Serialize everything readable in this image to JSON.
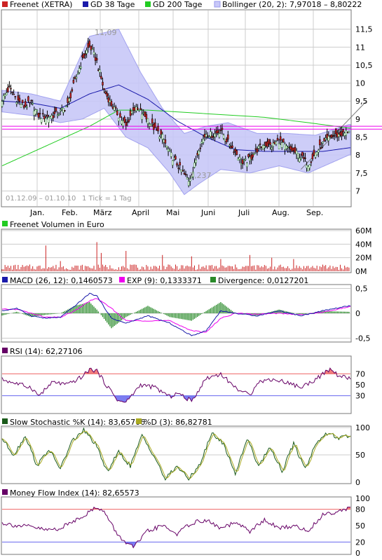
{
  "colors": {
    "candle_up": "#ffffff",
    "candle_down": "#cc2222",
    "candle_body_up": "#1a7a1a",
    "gd38": "#1a1aaa",
    "gd200": "#22cc22",
    "bollinger_fill": "#c8c8f8",
    "bollinger_line": "#9999ee",
    "magenta": "#ee00ee",
    "volume": "#cc2222",
    "macd": "#1a1aaa",
    "exp": "#ee00ee",
    "divergence": "#2a8a2a",
    "rsi": "#660066",
    "overbought": "#ee6666",
    "oversold": "#6666ee",
    "stoch_k": "#1a5a1a",
    "stoch_d": "#aaaa22",
    "mfi": "#660066",
    "grid": "#cccccc"
  },
  "chart_data": [
    {
      "type": "candlestick",
      "title": "Freenet (XETRA)",
      "legend": [
        {
          "name": "Freenet (XETRA)",
          "icon": "series-icon-freenet"
        },
        {
          "name": "GD 38 Tage",
          "icon": "series-icon-gd38"
        },
        {
          "name": "GD 200 Tage",
          "icon": "series-icon-gd200"
        },
        {
          "name": "Bollinger (20, 2): 7,97018 – 8,80222",
          "icon": "series-icon-bollinger"
        }
      ],
      "months": [
        "Jan.",
        "Feb.",
        "März",
        "April",
        "Mai",
        "Juni",
        "Juli",
        "Aug.",
        "Sep."
      ],
      "y_ticks": [
        "11,5",
        "11",
        "10,5",
        "10",
        "9,5",
        "9",
        "8,5",
        "8",
        "7,5",
        "7"
      ],
      "ylim": [
        6.6,
        12.0
      ],
      "annotations": {
        "high_label": "11,09",
        "low_label": "7,237",
        "range_label": "01.12.09 – 01.10.10",
        "tick_label": "1 Tick = 1 Tag"
      },
      "close_anchors": [
        [
          0,
          9.55
        ],
        [
          5,
          9.85
        ],
        [
          10,
          9.55
        ],
        [
          15,
          9.35
        ],
        [
          20,
          9.45
        ],
        [
          25,
          9.1
        ],
        [
          30,
          9.05
        ],
        [
          35,
          9.1
        ],
        [
          40,
          9.2
        ],
        [
          45,
          9.4
        ],
        [
          50,
          10.05
        ],
        [
          55,
          10.65
        ],
        [
          60,
          11.05
        ],
        [
          65,
          10.6
        ],
        [
          70,
          9.8
        ],
        [
          75,
          9.4
        ],
        [
          80,
          9.1
        ],
        [
          85,
          8.8
        ],
        [
          90,
          9.3
        ],
        [
          95,
          9.2
        ],
        [
          100,
          9.0
        ],
        [
          105,
          8.7
        ],
        [
          110,
          8.5
        ],
        [
          115,
          8.05
        ],
        [
          120,
          7.75
        ],
        [
          125,
          7.45
        ],
        [
          128,
          7.3
        ],
        [
          131,
          7.55
        ],
        [
          135,
          8.2
        ],
        [
          140,
          8.6
        ],
        [
          145,
          8.55
        ],
        [
          150,
          8.7
        ],
        [
          155,
          8.35
        ],
        [
          160,
          8.1
        ],
        [
          165,
          7.75
        ],
        [
          170,
          7.9
        ],
        [
          175,
          8.15
        ],
        [
          180,
          8.3
        ],
        [
          185,
          8.25
        ],
        [
          190,
          8.4
        ],
        [
          195,
          8.2
        ],
        [
          200,
          8.1
        ],
        [
          205,
          7.95
        ],
        [
          210,
          7.75
        ],
        [
          215,
          8.05
        ],
        [
          220,
          8.3
        ],
        [
          225,
          8.5
        ],
        [
          230,
          8.55
        ],
        [
          235,
          8.6
        ],
        [
          238,
          8.7
        ]
      ],
      "gd38_anchors": [
        [
          0,
          9.5
        ],
        [
          20,
          9.45
        ],
        [
          40,
          9.3
        ],
        [
          60,
          9.7
        ],
        [
          80,
          9.95
        ],
        [
          100,
          9.55
        ],
        [
          120,
          8.95
        ],
        [
          140,
          8.5
        ],
        [
          160,
          8.15
        ],
        [
          180,
          8.1
        ],
        [
          200,
          8.1
        ],
        [
          220,
          8.1
        ],
        [
          238,
          8.2
        ]
      ],
      "gd200_anchors": [
        [
          0,
          7.7
        ],
        [
          30,
          8.25
        ],
        [
          60,
          8.8
        ],
        [
          80,
          9.25
        ],
        [
          100,
          9.25
        ],
        [
          140,
          9.15
        ],
        [
          180,
          9.05
        ],
        [
          210,
          8.9
        ],
        [
          238,
          8.75
        ]
      ],
      "bollinger_upper": [
        [
          0,
          9.8
        ],
        [
          20,
          9.7
        ],
        [
          40,
          9.5
        ],
        [
          60,
          11.3
        ],
        [
          80,
          11.5
        ],
        [
          95,
          10.3
        ],
        [
          110,
          9.3
        ],
        [
          125,
          8.6
        ],
        [
          140,
          8.8
        ],
        [
          155,
          8.9
        ],
        [
          175,
          8.6
        ],
        [
          195,
          8.6
        ],
        [
          215,
          8.55
        ],
        [
          238,
          8.85
        ]
      ],
      "bollinger_lower": [
        [
          0,
          9.2
        ],
        [
          20,
          9.1
        ],
        [
          40,
          8.9
        ],
        [
          55,
          9.0
        ],
        [
          70,
          9.3
        ],
        [
          85,
          8.5
        ],
        [
          100,
          8.2
        ],
        [
          115,
          7.5
        ],
        [
          125,
          6.9
        ],
        [
          135,
          7.2
        ],
        [
          150,
          7.6
        ],
        [
          170,
          7.5
        ],
        [
          190,
          7.7
        ],
        [
          210,
          7.5
        ],
        [
          238,
          8.0
        ]
      ],
      "magenta_levels": [
        8.8,
        8.72
      ],
      "trendline": [
        [
          205,
          7.6
        ],
        [
          250,
          9.5
        ]
      ]
    },
    {
      "type": "bar",
      "title": "Freenet Volumen in Euro",
      "y_ticks": [
        "60M",
        "40M",
        "20M",
        "0M"
      ],
      "ylim": [
        0,
        60
      ],
      "spikes": [
        [
          30,
          38
        ],
        [
          40,
          15
        ],
        [
          65,
          43
        ],
        [
          68,
          27
        ],
        [
          85,
          30
        ],
        [
          110,
          24
        ],
        [
          130,
          22
        ],
        [
          150,
          18
        ],
        [
          170,
          24
        ],
        [
          185,
          20
        ],
        [
          200,
          18
        ]
      ]
    },
    {
      "type": "line",
      "legend": [
        {
          "name": "MACD (26, 12): 0,1460573",
          "icon": "series-icon-macd"
        },
        {
          "name": "EXP (9): 0,1333371",
          "icon": "series-icon-exp"
        },
        {
          "name": "Divergence: 0,0127201",
          "icon": "series-icon-divergence"
        }
      ],
      "y_ticks": [
        "0,5",
        "0",
        "-0,5"
      ],
      "ylim": [
        -0.55,
        0.55
      ],
      "macd": [
        [
          0,
          0.05
        ],
        [
          10,
          0.1
        ],
        [
          20,
          -0.05
        ],
        [
          30,
          -0.1
        ],
        [
          40,
          -0.08
        ],
        [
          50,
          0.15
        ],
        [
          60,
          0.4
        ],
        [
          65,
          0.35
        ],
        [
          75,
          -0.1
        ],
        [
          85,
          -0.2
        ],
        [
          100,
          -0.05
        ],
        [
          115,
          -0.2
        ],
        [
          130,
          -0.45
        ],
        [
          140,
          -0.35
        ],
        [
          150,
          0.05
        ],
        [
          160,
          0.0
        ],
        [
          175,
          -0.05
        ],
        [
          190,
          0.05
        ],
        [
          205,
          -0.05
        ],
        [
          220,
          0.05
        ],
        [
          238,
          0.15
        ]
      ],
      "exp": [
        [
          0,
          0.08
        ],
        [
          10,
          0.08
        ],
        [
          20,
          0.0
        ],
        [
          30,
          -0.08
        ],
        [
          40,
          -0.08
        ],
        [
          50,
          0.05
        ],
        [
          60,
          0.25
        ],
        [
          65,
          0.3
        ],
        [
          75,
          0.1
        ],
        [
          85,
          -0.15
        ],
        [
          100,
          -0.15
        ],
        [
          115,
          -0.15
        ],
        [
          130,
          -0.35
        ],
        [
          140,
          -0.38
        ],
        [
          150,
          -0.1
        ],
        [
          160,
          0.0
        ],
        [
          175,
          -0.02
        ],
        [
          190,
          0.0
        ],
        [
          205,
          -0.03
        ],
        [
          220,
          0.02
        ],
        [
          238,
          0.13
        ]
      ]
    },
    {
      "type": "line",
      "legend": [
        {
          "name": "RSI (14): 62,27106",
          "icon": "series-icon-rsi"
        }
      ],
      "y_ticks": [
        "70",
        "50",
        "30"
      ],
      "ylim": [
        0,
        100
      ],
      "levels": [
        70,
        30
      ],
      "values": [
        [
          0,
          60
        ],
        [
          10,
          52
        ],
        [
          20,
          45
        ],
        [
          25,
          30
        ],
        [
          35,
          55
        ],
        [
          45,
          50
        ],
        [
          55,
          65
        ],
        [
          60,
          78
        ],
        [
          65,
          76
        ],
        [
          70,
          55
        ],
        [
          80,
          20
        ],
        [
          85,
          18
        ],
        [
          95,
          50
        ],
        [
          105,
          45
        ],
        [
          115,
          28
        ],
        [
          120,
          35
        ],
        [
          130,
          20
        ],
        [
          140,
          62
        ],
        [
          150,
          70
        ],
        [
          160,
          45
        ],
        [
          170,
          30
        ],
        [
          175,
          55
        ],
        [
          185,
          60
        ],
        [
          195,
          55
        ],
        [
          205,
          45
        ],
        [
          215,
          60
        ],
        [
          225,
          78
        ],
        [
          232,
          65
        ],
        [
          238,
          62
        ]
      ]
    },
    {
      "type": "line",
      "legend": [
        {
          "name": "Slow Stochastic %K (14): 83,65706",
          "icon": "series-icon-stoch-k"
        },
        {
          "name": "%D (3): 86,82781",
          "icon": "series-icon-stoch-d"
        }
      ],
      "y_ticks": [
        "100",
        "50",
        "0"
      ],
      "ylim": [
        0,
        100
      ],
      "values": [
        [
          0,
          80
        ],
        [
          8,
          50
        ],
        [
          16,
          85
        ],
        [
          24,
          30
        ],
        [
          32,
          60
        ],
        [
          40,
          25
        ],
        [
          48,
          75
        ],
        [
          56,
          95
        ],
        [
          64,
          70
        ],
        [
          72,
          20
        ],
        [
          80,
          55
        ],
        [
          88,
          30
        ],
        [
          96,
          85
        ],
        [
          104,
          50
        ],
        [
          112,
          5
        ],
        [
          120,
          30
        ],
        [
          128,
          5
        ],
        [
          136,
          35
        ],
        [
          144,
          90
        ],
        [
          152,
          70
        ],
        [
          160,
          15
        ],
        [
          168,
          80
        ],
        [
          176,
          30
        ],
        [
          184,
          65
        ],
        [
          192,
          20
        ],
        [
          200,
          70
        ],
        [
          208,
          25
        ],
        [
          216,
          75
        ],
        [
          224,
          90
        ],
        [
          232,
          80
        ],
        [
          238,
          85
        ]
      ]
    },
    {
      "type": "line",
      "legend": [
        {
          "name": "Money Flow Index (14): 82,65573",
          "icon": "series-icon-mfi"
        }
      ],
      "y_ticks": [
        "100",
        "80",
        "50",
        "20",
        "0"
      ],
      "ylim": [
        0,
        100
      ],
      "levels": [
        80,
        20
      ],
      "values": [
        [
          0,
          55
        ],
        [
          10,
          50
        ],
        [
          20,
          48
        ],
        [
          30,
          42
        ],
        [
          40,
          45
        ],
        [
          50,
          60
        ],
        [
          60,
          75
        ],
        [
          65,
          85
        ],
        [
          70,
          75
        ],
        [
          80,
          30
        ],
        [
          90,
          10
        ],
        [
          100,
          40
        ],
        [
          110,
          50
        ],
        [
          120,
          35
        ],
        [
          130,
          55
        ],
        [
          140,
          60
        ],
        [
          150,
          45
        ],
        [
          160,
          55
        ],
        [
          170,
          40
        ],
        [
          180,
          60
        ],
        [
          190,
          45
        ],
        [
          200,
          50
        ],
        [
          210,
          40
        ],
        [
          220,
          70
        ],
        [
          228,
          75
        ],
        [
          235,
          80
        ],
        [
          238,
          83
        ]
      ]
    }
  ]
}
